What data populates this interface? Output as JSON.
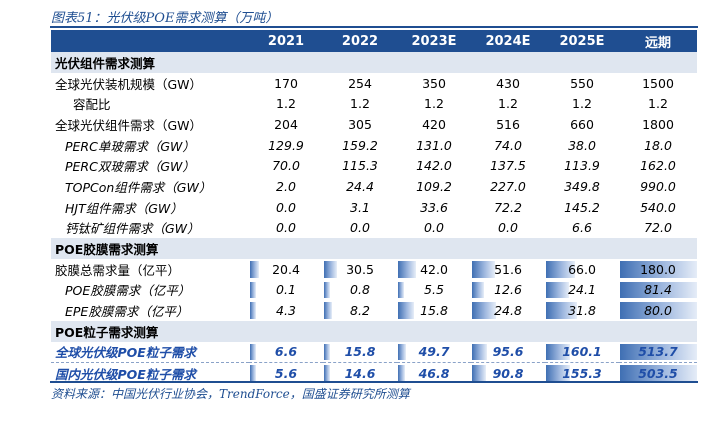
{
  "caption": "图表51：光伏级POE需求测算（万吨）",
  "columns": [
    "2021",
    "2022",
    "2023E",
    "2024E",
    "2025E",
    "远期"
  ],
  "sections": [
    {
      "title": "光伏组件需求测算",
      "rows": [
        {
          "label": "全球光伏装机规模（GW）",
          "style": "normal",
          "values": [
            "170",
            "254",
            "350",
            "430",
            "550",
            "1500"
          ]
        },
        {
          "label": "容配比",
          "style": "indent",
          "values": [
            "1.2",
            "1.2",
            "1.2",
            "1.2",
            "1.2",
            "1.2"
          ]
        },
        {
          "label": "全球光伏组件需求（GW）",
          "style": "normal",
          "values": [
            "204",
            "305",
            "420",
            "516",
            "660",
            "1800"
          ]
        },
        {
          "label": "PERC单玻需求（GW）",
          "style": "italic",
          "values": [
            "129.9",
            "159.2",
            "131.0",
            "74.0",
            "38.0",
            "18.0"
          ]
        },
        {
          "label": "PERC双玻需求（GW）",
          "style": "italic",
          "values": [
            "70.0",
            "115.3",
            "142.0",
            "137.5",
            "113.9",
            "162.0"
          ]
        },
        {
          "label": "TOPCon组件需求（GW）",
          "style": "italic",
          "values": [
            "2.0",
            "24.4",
            "109.2",
            "227.0",
            "349.8",
            "990.0"
          ]
        },
        {
          "label": "HJT组件需求（GW）",
          "style": "italic",
          "values": [
            "0.0",
            "3.1",
            "33.6",
            "72.2",
            "145.2",
            "540.0"
          ]
        },
        {
          "label": "钙钛矿组件需求（GW）",
          "style": "italic",
          "values": [
            "0.0",
            "0.0",
            "0.0",
            "0.0",
            "6.6",
            "72.0"
          ]
        }
      ]
    },
    {
      "title": "POE胶膜需求测算",
      "rows": [
        {
          "label": "胶膜总需求量（亿平）",
          "style": "normal",
          "values": [
            "20.4",
            "30.5",
            "42.0",
            "51.6",
            "66.0",
            "180.0"
          ],
          "bar_fraction": [
            0.11,
            0.17,
            0.23,
            0.29,
            0.37,
            1.0
          ]
        },
        {
          "label": "POE胶膜需求（亿平）",
          "style": "italic",
          "values": [
            "0.1",
            "0.8",
            "5.5",
            "12.6",
            "24.1",
            "81.4"
          ],
          "bar_fraction": [
            0.0,
            0.01,
            0.07,
            0.15,
            0.3,
            1.0
          ]
        },
        {
          "label": "EPE胶膜需求（亿平）",
          "style": "italic",
          "values": [
            "4.3",
            "8.2",
            "15.8",
            "24.8",
            "31.8",
            "80.0"
          ],
          "bar_fraction": [
            0.05,
            0.1,
            0.2,
            0.31,
            0.4,
            1.0
          ]
        }
      ]
    },
    {
      "title": "POE粒子需求测算",
      "rows": [
        {
          "label": "全球光伏级POE粒子需求",
          "style": "highlight",
          "values": [
            "6.6",
            "15.8",
            "49.7",
            "95.6",
            "160.1",
            "513.7"
          ],
          "bar_fraction": [
            0.01,
            0.03,
            0.1,
            0.19,
            0.31,
            1.0
          ]
        },
        {
          "label": "国内光伏级POE粒子需求",
          "style": "highlight",
          "values": [
            "5.6",
            "14.6",
            "46.8",
            "90.8",
            "155.3",
            "503.5"
          ],
          "bar_fraction": [
            0.01,
            0.03,
            0.09,
            0.18,
            0.31,
            1.0
          ]
        }
      ]
    }
  ],
  "source": "资料来源：中国光伏行业协会，TrendForce，国盛证券研究所测算",
  "colors": {
    "header_bg": "#1f4e91",
    "section_bg": "#dfe6f0",
    "highlight_text": "#1f4ea8",
    "bar": "#3f6fb3"
  }
}
